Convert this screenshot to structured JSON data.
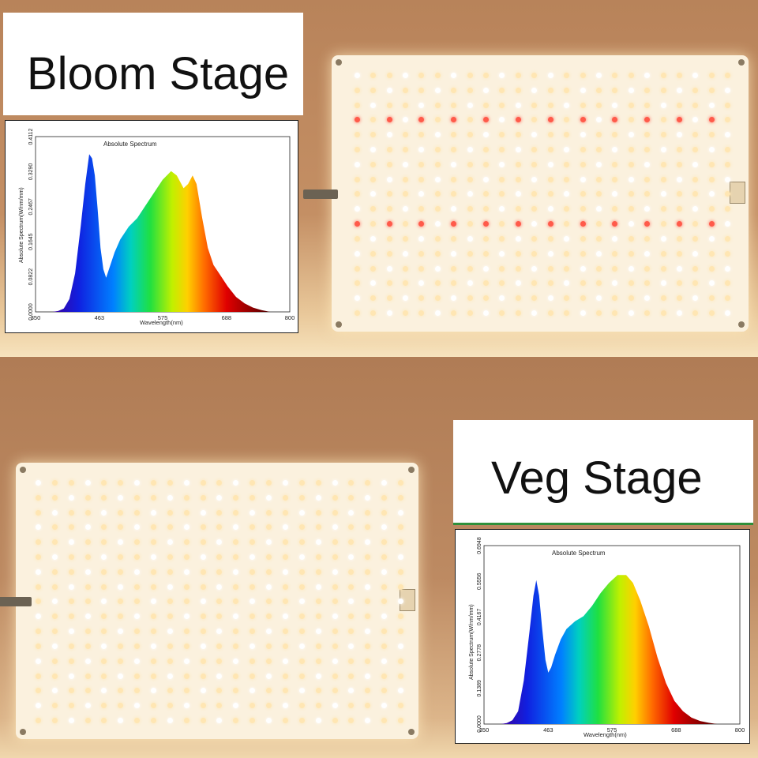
{
  "top_section": {
    "title": "Bloom Stage",
    "spectrum": {
      "heading": "Absolute Spectrum",
      "ylabel": "Absolute Spectrum(W/nm/mm)",
      "xlabel": "Wavelength(nm)",
      "x_ticks": [
        "350",
        "463",
        "575",
        "688",
        "800"
      ],
      "y_ticks": [
        "0.0000",
        "0.0822",
        "0.1645",
        "0.2467",
        "0.3290",
        "0.4112"
      ],
      "curve": [
        [
          380,
          0
        ],
        [
          390,
          0.002
        ],
        [
          400,
          0.008
        ],
        [
          410,
          0.03
        ],
        [
          420,
          0.09
        ],
        [
          430,
          0.2
        ],
        [
          438,
          0.3
        ],
        [
          445,
          0.37
        ],
        [
          450,
          0.36
        ],
        [
          455,
          0.32
        ],
        [
          460,
          0.24
        ],
        [
          465,
          0.15
        ],
        [
          470,
          0.1
        ],
        [
          475,
          0.08
        ],
        [
          480,
          0.1
        ],
        [
          490,
          0.14
        ],
        [
          500,
          0.17
        ],
        [
          515,
          0.2
        ],
        [
          530,
          0.22
        ],
        [
          545,
          0.25
        ],
        [
          560,
          0.28
        ],
        [
          575,
          0.31
        ],
        [
          590,
          0.33
        ],
        [
          600,
          0.32
        ],
        [
          612,
          0.29
        ],
        [
          620,
          0.3
        ],
        [
          628,
          0.32
        ],
        [
          635,
          0.3
        ],
        [
          645,
          0.22
        ],
        [
          655,
          0.15
        ],
        [
          665,
          0.11
        ],
        [
          675,
          0.09
        ],
        [
          690,
          0.06
        ],
        [
          705,
          0.035
        ],
        [
          720,
          0.02
        ],
        [
          735,
          0.01
        ],
        [
          750,
          0.004
        ],
        [
          765,
          0
        ]
      ]
    }
  },
  "bottom_section": {
    "title": "Veg Stage",
    "spectrum": {
      "heading": "Absolute Spectrum",
      "ylabel": "Absolute Spectrum(W/nm/mm)",
      "xlabel": "Wavelength(nm)",
      "x_ticks": [
        "350",
        "463",
        "575",
        "688",
        "800"
      ],
      "y_ticks": [
        "0.0000",
        "0.1389",
        "0.2778",
        "0.4167",
        "0.5556",
        "0.6948"
      ],
      "curve": [
        [
          380,
          0
        ],
        [
          390,
          0.004
        ],
        [
          400,
          0.015
        ],
        [
          410,
          0.05
        ],
        [
          420,
          0.17
        ],
        [
          430,
          0.36
        ],
        [
          437,
          0.5
        ],
        [
          442,
          0.56
        ],
        [
          447,
          0.5
        ],
        [
          452,
          0.38
        ],
        [
          458,
          0.25
        ],
        [
          463,
          0.2
        ],
        [
          468,
          0.22
        ],
        [
          475,
          0.27
        ],
        [
          485,
          0.33
        ],
        [
          495,
          0.37
        ],
        [
          510,
          0.4
        ],
        [
          525,
          0.42
        ],
        [
          540,
          0.46
        ],
        [
          555,
          0.51
        ],
        [
          570,
          0.55
        ],
        [
          585,
          0.58
        ],
        [
          600,
          0.58
        ],
        [
          612,
          0.55
        ],
        [
          625,
          0.48
        ],
        [
          640,
          0.38
        ],
        [
          655,
          0.26
        ],
        [
          670,
          0.16
        ],
        [
          685,
          0.09
        ],
        [
          700,
          0.05
        ],
        [
          715,
          0.025
        ],
        [
          730,
          0.012
        ],
        [
          745,
          0.005
        ],
        [
          760,
          0
        ]
      ]
    }
  },
  "colors": {
    "warm_led": "#ffe6b3",
    "white_led": "#ffffff",
    "red_led": "#ff5a4a",
    "board": "#fbf1de",
    "rule_green": "#2f8f3a"
  }
}
